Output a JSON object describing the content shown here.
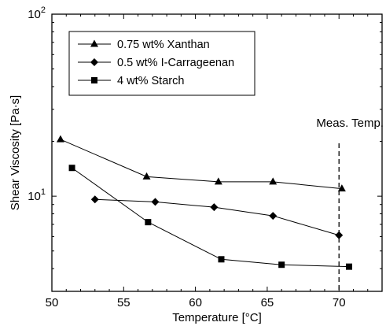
{
  "chart_data": {
    "type": "line",
    "title": "",
    "xlabel": "Temperature [°C]",
    "ylabel": "Shear Viscosity [Pa·s]",
    "xlim": [
      50,
      73
    ],
    "ylim": [
      3.0,
      100
    ],
    "yscale": "log",
    "grid": false,
    "legend_position": "top-left",
    "x_ticks": [
      {
        "value": 50,
        "label": "50"
      },
      {
        "value": 55,
        "label": "55"
      },
      {
        "value": 60,
        "label": "60"
      },
      {
        "value": 65,
        "label": "65"
      },
      {
        "value": 70,
        "label": "70"
      }
    ],
    "y_ticks": [
      {
        "value": 10,
        "base": "10",
        "exp": "1"
      },
      {
        "value": 100,
        "base": "10",
        "exp": "2"
      }
    ],
    "series": [
      {
        "name": "0.75 wt% Xanthan",
        "marker": "triangle",
        "x": [
          50.6,
          56.6,
          61.6,
          65.4,
          70.2
        ],
        "y": [
          20.5,
          12.8,
          12.0,
          12.0,
          11.0
        ]
      },
      {
        "name": "0.5 wt% I-Carrageenan",
        "marker": "diamond",
        "x": [
          53.0,
          57.2,
          61.3,
          65.4,
          70.0
        ],
        "y": [
          9.6,
          9.3,
          8.7,
          7.8,
          6.1
        ]
      },
      {
        "name": "4 wt% Starch",
        "marker": "square",
        "x": [
          51.4,
          56.7,
          61.8,
          66.0,
          70.7
        ],
        "y": [
          14.3,
          7.2,
          4.5,
          4.2,
          4.1
        ]
      }
    ],
    "annotations": [
      {
        "text": "Meas. Temp.",
        "x": 70,
        "style": "dashed vertical line"
      }
    ]
  }
}
